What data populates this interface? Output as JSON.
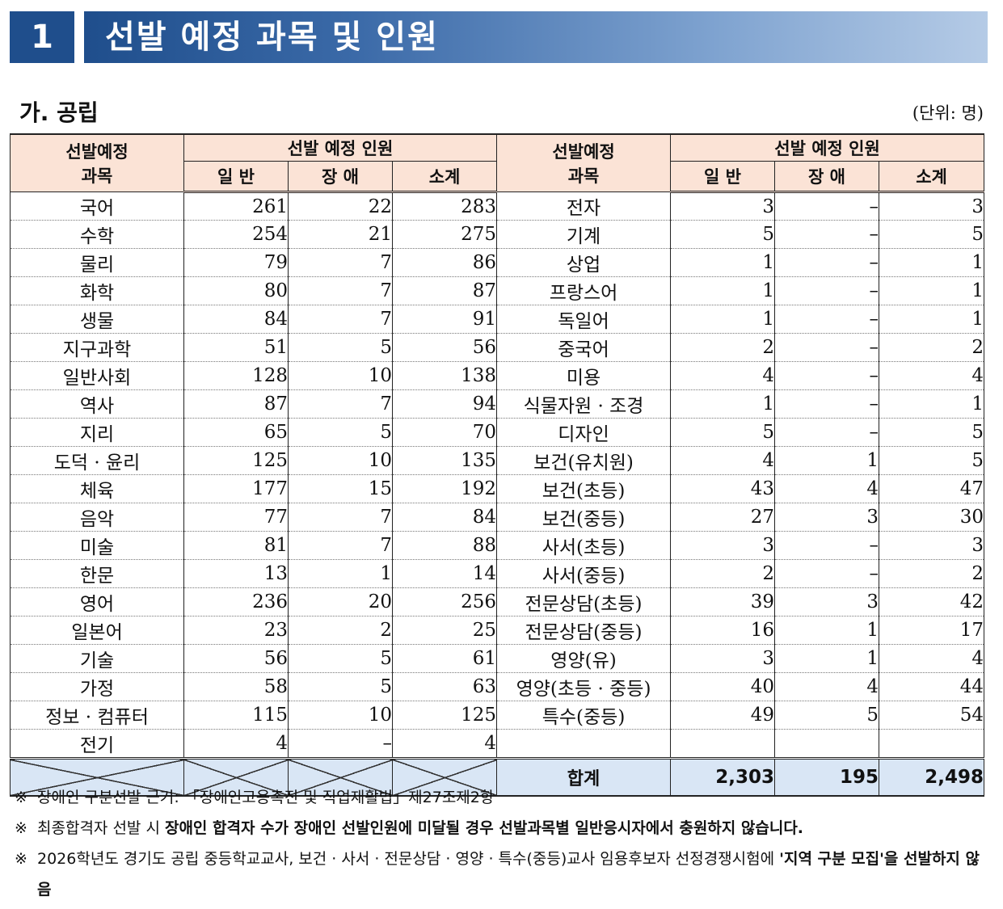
{
  "header": {
    "number": "1",
    "title": "선발 예정 과목 및 인원"
  },
  "section": {
    "title": "가. 공립",
    "unit": "(단위: 명)"
  },
  "table": {
    "h_subject_l1": "선발예정",
    "h_subject_l2": "과목",
    "h_people": "선발 예정 인원",
    "h_general": "일 반",
    "h_disabled": "장 애",
    "h_subtotal": "소계",
    "left_rows": [
      [
        "국어",
        "261",
        "22",
        "283"
      ],
      [
        "수학",
        "254",
        "21",
        "275"
      ],
      [
        "물리",
        "79",
        "7",
        "86"
      ],
      [
        "화학",
        "80",
        "7",
        "87"
      ],
      [
        "생물",
        "84",
        "7",
        "91"
      ],
      [
        "지구과학",
        "51",
        "5",
        "56"
      ],
      [
        "일반사회",
        "128",
        "10",
        "138"
      ],
      [
        "역사",
        "87",
        "7",
        "94"
      ],
      [
        "지리",
        "65",
        "5",
        "70"
      ],
      [
        "도덕 · 윤리",
        "125",
        "10",
        "135"
      ],
      [
        "체육",
        "177",
        "15",
        "192"
      ],
      [
        "음악",
        "77",
        "7",
        "84"
      ],
      [
        "미술",
        "81",
        "7",
        "88"
      ],
      [
        "한문",
        "13",
        "1",
        "14"
      ],
      [
        "영어",
        "236",
        "20",
        "256"
      ],
      [
        "일본어",
        "23",
        "2",
        "25"
      ],
      [
        "기술",
        "56",
        "5",
        "61"
      ],
      [
        "가정",
        "58",
        "5",
        "63"
      ],
      [
        "정보 · 컴퓨터",
        "115",
        "10",
        "125"
      ],
      [
        "전기",
        "4",
        "–",
        "4"
      ]
    ],
    "right_rows": [
      [
        "전자",
        "3",
        "–",
        "3"
      ],
      [
        "기계",
        "5",
        "–",
        "5"
      ],
      [
        "상업",
        "1",
        "–",
        "1"
      ],
      [
        "프랑스어",
        "1",
        "–",
        "1"
      ],
      [
        "독일어",
        "1",
        "–",
        "1"
      ],
      [
        "중국어",
        "2",
        "–",
        "2"
      ],
      [
        "미용",
        "4",
        "–",
        "4"
      ],
      [
        "식물자원 · 조경",
        "1",
        "–",
        "1"
      ],
      [
        "디자인",
        "5",
        "–",
        "5"
      ],
      [
        "보건(유치원)",
        "4",
        "1",
        "5"
      ],
      [
        "보건(초등)",
        "43",
        "4",
        "47"
      ],
      [
        "보건(중등)",
        "27",
        "3",
        "30"
      ],
      [
        "사서(초등)",
        "3",
        "–",
        "3"
      ],
      [
        "사서(중등)",
        "2",
        "–",
        "2"
      ],
      [
        "전문상담(초등)",
        "39",
        "3",
        "42"
      ],
      [
        "전문상담(중등)",
        "16",
        "1",
        "17"
      ],
      [
        "영양(유)",
        "3",
        "1",
        "4"
      ],
      [
        "영양(초등 · 중등)",
        "40",
        "4",
        "44"
      ],
      [
        "특수(중등)",
        "49",
        "5",
        "54"
      ],
      [
        "",
        "",
        "",
        ""
      ]
    ],
    "total": {
      "label": "합계",
      "general": "2,303",
      "disabled": "195",
      "subtotal": "2,498"
    }
  },
  "notes": [
    {
      "mark": "※",
      "parts": [
        {
          "text": "장애인 구분선발 근거: 「장애인고용촉진 및 직업재활법」제27조제2항",
          "bold": false
        }
      ]
    },
    {
      "mark": "※",
      "parts": [
        {
          "text": "최종합격자 선발 시 ",
          "bold": false
        },
        {
          "text": "장애인 합격자 수가 장애인 선발인원에 미달될 경우 선발과목별 일반응시자에서 충원하지 않습니다.",
          "bold": true
        }
      ]
    },
    {
      "mark": "※",
      "parts": [
        {
          "text": "2026학년도 경기도 공립 중등학교교사, 보건 · 사서 · 전문상담 · 영양 · 특수(중등)교사 임용후보자 선정경쟁시험에 ",
          "bold": false
        },
        {
          "text": "'지역 구분 모집'",
          "bold": true
        },
        {
          "text": "을 선발하지 않음",
          "bold": true
        }
      ]
    }
  ]
}
